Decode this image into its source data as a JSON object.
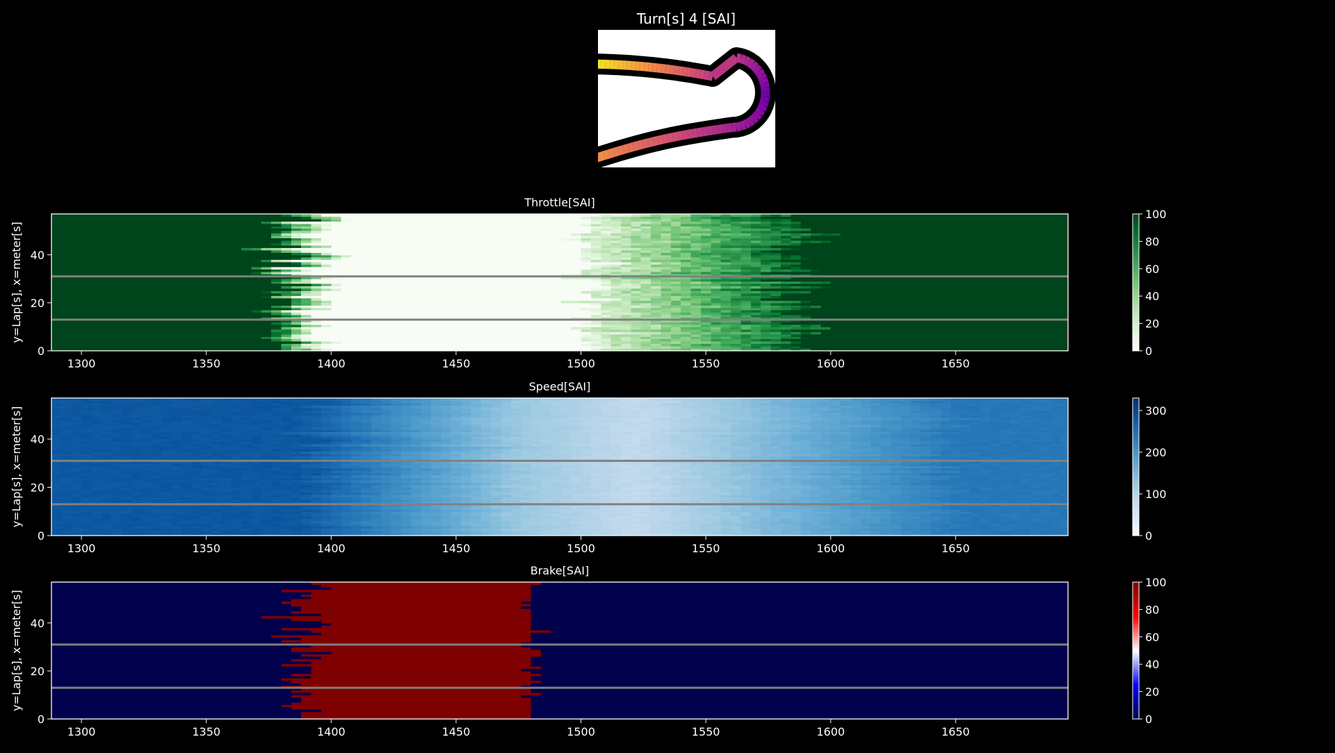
{
  "figure": {
    "title": "Turn[s] 4 [SAI]"
  },
  "colors": {
    "background": "#000000",
    "foreground": "#ffffff",
    "lap_separator": "#808080",
    "track_outline": "#000000",
    "track_fill": "#ffffff"
  },
  "track_map": {
    "colormap": "plasma",
    "path_description": "hairpin turn opening to the left, upper leg yellow-orange, apex purple, lower leg pink-orange"
  },
  "chart_data": [
    {
      "type": "heatmap",
      "title": "Throttle[SAI]",
      "xlabel": "",
      "ylabel": "y=Lap[s], x=meter[s]",
      "xlim": [
        1288,
        1695
      ],
      "ylim": [
        0,
        57
      ],
      "xticks": [
        1300,
        1350,
        1400,
        1450,
        1500,
        1550,
        1600,
        1650
      ],
      "yticks": [
        0,
        20,
        40
      ],
      "colormap": "Greens",
      "clim": [
        0,
        100
      ],
      "colorbar_ticks": [
        0,
        20,
        40,
        60,
        80,
        100
      ],
      "lap_separators": [
        13,
        31
      ],
      "profile": {
        "lift_start_mean": 1375,
        "lift_spread": 20,
        "full_lift_mean": 1395,
        "reapply_start_mean": 1500,
        "reapply_full_mean": 1585,
        "reapply_spread": 18
      }
    },
    {
      "type": "heatmap",
      "title": "Speed[SAI]",
      "xlabel": "",
      "ylabel": "y=Lap[s], x=meter[s]",
      "xlim": [
        1288,
        1695
      ],
      "ylim": [
        0,
        57
      ],
      "xticks": [
        1300,
        1350,
        1400,
        1450,
        1500,
        1550,
        1600,
        1650
      ],
      "yticks": [
        0,
        20,
        40
      ],
      "colormap": "Blues",
      "clim": [
        0,
        330
      ],
      "colorbar_ticks": [
        0,
        100,
        200,
        300
      ],
      "lap_separators": [
        13,
        31
      ],
      "profile": {
        "entry_speed": 280,
        "min_speed": 85,
        "min_speed_at": 1520,
        "exit_speed": 240,
        "decel_start": 1385,
        "decel_end": 1470,
        "accel_end": 1650
      }
    },
    {
      "type": "heatmap",
      "title": "Brake[SAI]",
      "xlabel": "",
      "ylabel": "y=Lap[s], x=meter[s]",
      "xlim": [
        1288,
        1695
      ],
      "ylim": [
        0,
        57
      ],
      "xticks": [
        1300,
        1350,
        1400,
        1450,
        1500,
        1550,
        1600,
        1650
      ],
      "yticks": [
        0,
        20,
        40
      ],
      "colormap": "seismic",
      "clim": [
        0,
        100
      ],
      "colorbar_ticks": [
        0,
        20,
        40,
        60,
        80,
        100
      ],
      "lap_separators": [
        13,
        31
      ],
      "profile": {
        "brake_on_mean": 1385,
        "brake_on_spread": 18,
        "brake_off_mean": 1478,
        "brake_off_spread": 8
      }
    }
  ]
}
